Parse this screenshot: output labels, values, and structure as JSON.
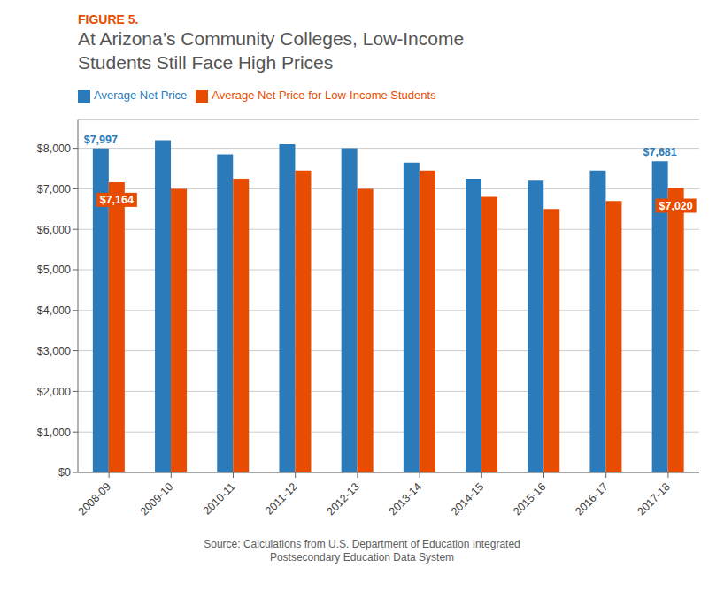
{
  "chart_data": {
    "type": "bar",
    "figure_label": "FIGURE 5.",
    "figure_label_color": "#e84c00",
    "title": [
      "At Arizona’s Community Colleges, Low-Income",
      "Students Still Face High Prices"
    ],
    "title_color": "#555555",
    "categories": [
      "2008-09",
      "2009-10",
      "2010-11",
      "2011-12",
      "2012-13",
      "2013-14",
      "2014-15",
      "2015-16",
      "2016-17",
      "2017-18"
    ],
    "series": [
      {
        "name": "Average Net Price",
        "color": "#2b7bba",
        "values": [
          7997,
          8200,
          7850,
          8100,
          8000,
          7650,
          7250,
          7200,
          7450,
          7681
        ]
      },
      {
        "name": "Average Net Price for Low-Income Students",
        "color": "#e84c00",
        "values": [
          7164,
          7000,
          7250,
          7450,
          7000,
          7450,
          6800,
          6500,
          6700,
          7020
        ]
      }
    ],
    "ylim": [
      0,
      8700
    ],
    "yticks": [
      {
        "value": 0,
        "label": "$0"
      },
      {
        "value": 1000,
        "label": "$1,000"
      },
      {
        "value": 2000,
        "label": "$2,000"
      },
      {
        "value": 3000,
        "label": "$3,000"
      },
      {
        "value": 4000,
        "label": "$4,000"
      },
      {
        "value": 5000,
        "label": "$5,000"
      },
      {
        "value": 6000,
        "label": "$6,000"
      },
      {
        "value": 7000,
        "label": "$7,000"
      },
      {
        "value": 8000,
        "label": "$8,000"
      }
    ],
    "grid": true,
    "legend": "upper left",
    "annotations": [
      {
        "category": "2008-09",
        "series": "Average Net Price",
        "value": 7997,
        "text": "$7,997"
      },
      {
        "category": "2008-09",
        "series": "Average Net Price for Low-Income Students",
        "value": 7164,
        "text": "$7,164"
      },
      {
        "category": "2017-18",
        "series": "Average Net Price",
        "value": 7681,
        "text": "$7,681"
      },
      {
        "category": "2017-18",
        "series": "Average Net Price for Low-Income Students",
        "value": 7020,
        "text": "$7,020"
      }
    ],
    "source": "Source: Calculations from U.S. Department of Education Integrated\nPostsecondary Education Data System"
  }
}
